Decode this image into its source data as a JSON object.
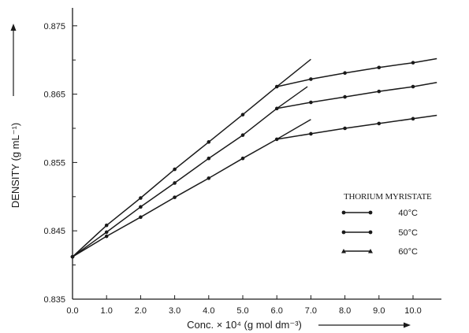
{
  "chart_data": {
    "type": "line",
    "title": "",
    "xlabel": "Conc. × 10⁴ (g mol dm⁻³)",
    "ylabel": "DENSITY (g mL⁻¹)",
    "xlim": [
      0,
      11
    ],
    "ylim": [
      0.835,
      0.877
    ],
    "x_ticks": [
      "0.0",
      "1.0",
      "2.0",
      "3.0",
      "4.0",
      "5.0",
      "6.0",
      "7.0",
      "8.0",
      "9.0",
      "10.0"
    ],
    "y_ticks": [
      "0.835",
      "0.845",
      "0.855",
      "0.865",
      "0.875"
    ],
    "grid": false,
    "legend": {
      "title": "THORIUM MYRISTATE",
      "position": "right",
      "entries": [
        "40°C",
        "50°C",
        "60°C"
      ]
    },
    "series": [
      {
        "name": "40°C",
        "x": [
          0,
          1,
          2,
          3,
          4,
          5,
          6,
          7,
          8,
          9,
          10
        ],
        "y": [
          0.8412,
          0.8458,
          0.8498,
          0.854,
          0.858,
          0.862,
          0.8661,
          0.8672,
          0.8681,
          0.8689,
          0.8696
        ],
        "extrapolation": {
          "x": [
            6,
            7
          ],
          "y": [
            0.8661,
            0.8701
          ]
        },
        "end": {
          "x": 10.7,
          "y": 0.8702
        }
      },
      {
        "name": "50°C",
        "x": [
          0,
          1,
          2,
          3,
          4,
          5,
          6,
          7,
          8,
          9,
          10
        ],
        "y": [
          0.8412,
          0.8448,
          0.8485,
          0.852,
          0.8556,
          0.859,
          0.8629,
          0.8638,
          0.8646,
          0.8654,
          0.8661
        ],
        "extrapolation": {
          "x": [
            6,
            6.9
          ],
          "y": [
            0.8629,
            0.8661
          ]
        },
        "end": {
          "x": 10.7,
          "y": 0.8667
        }
      },
      {
        "name": "60°C",
        "x": [
          0,
          1,
          2,
          3,
          4,
          5,
          6,
          7,
          8,
          9,
          10
        ],
        "y": [
          0.8412,
          0.8442,
          0.847,
          0.8499,
          0.8527,
          0.8556,
          0.8584,
          0.8592,
          0.86,
          0.8607,
          0.8614
        ],
        "extrapolation": {
          "x": [
            6,
            7
          ],
          "y": [
            0.8584,
            0.8613
          ]
        },
        "end": {
          "x": 10.7,
          "y": 0.8619
        }
      }
    ]
  }
}
